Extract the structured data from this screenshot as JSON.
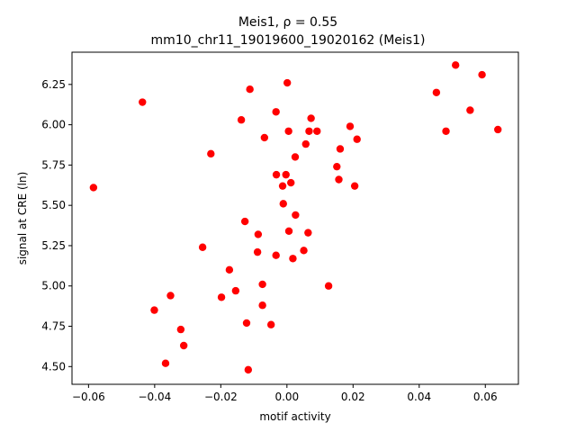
{
  "chart_data": {
    "type": "scatter",
    "title_line1": "Meis1, ρ = 0.55",
    "title_line2": "mm10_chr11_19019600_19020162 (Meis1)",
    "xlabel": "motif activity",
    "ylabel": "signal at CRE (ln)",
    "xlim": [
      -0.065,
      0.07
    ],
    "ylim": [
      4.39,
      6.45
    ],
    "x_ticks": [
      -0.06,
      -0.04,
      -0.02,
      0.0,
      0.02,
      0.04,
      0.06
    ],
    "x_tick_labels": [
      "−0.06",
      "−0.04",
      "−0.02",
      "0.00",
      "0.02",
      "0.04",
      "0.06"
    ],
    "y_ticks": [
      4.5,
      4.75,
      5.0,
      5.25,
      5.5,
      5.75,
      6.0,
      6.25
    ],
    "y_tick_labels": [
      "4.50",
      "4.75",
      "5.00",
      "5.25",
      "5.50",
      "5.75",
      "6.00",
      "6.25"
    ],
    "grid": false,
    "marker_color": "#ff0000",
    "points": [
      {
        "x": -0.0585,
        "y": 5.61
      },
      {
        "x": -0.0437,
        "y": 6.14
      },
      {
        "x": -0.0401,
        "y": 4.85
      },
      {
        "x": -0.0367,
        "y": 4.52
      },
      {
        "x": -0.0352,
        "y": 4.94
      },
      {
        "x": -0.0321,
        "y": 4.73
      },
      {
        "x": -0.0312,
        "y": 4.63
      },
      {
        "x": -0.0255,
        "y": 5.24
      },
      {
        "x": -0.023,
        "y": 5.82
      },
      {
        "x": -0.0198,
        "y": 4.93
      },
      {
        "x": -0.0174,
        "y": 5.1
      },
      {
        "x": -0.0155,
        "y": 4.97
      },
      {
        "x": -0.0138,
        "y": 6.03
      },
      {
        "x": -0.0127,
        "y": 5.4
      },
      {
        "x": -0.0122,
        "y": 4.77
      },
      {
        "x": -0.0117,
        "y": 4.48
      },
      {
        "x": -0.0112,
        "y": 6.22
      },
      {
        "x": -0.0087,
        "y": 5.32
      },
      {
        "x": -0.0089,
        "y": 5.21
      },
      {
        "x": -0.0074,
        "y": 5.01
      },
      {
        "x": -0.0074,
        "y": 4.88
      },
      {
        "x": -0.0068,
        "y": 5.92
      },
      {
        "x": -0.0048,
        "y": 4.76
      },
      {
        "x": -0.0033,
        "y": 6.08
      },
      {
        "x": -0.0032,
        "y": 5.69
      },
      {
        "x": -0.0033,
        "y": 5.19
      },
      {
        "x": -0.0013,
        "y": 5.62
      },
      {
        "x": -0.0011,
        "y": 5.51
      },
      {
        "x": -0.0003,
        "y": 5.69
      },
      {
        "x": 0.0001,
        "y": 6.26
      },
      {
        "x": 0.0005,
        "y": 5.96
      },
      {
        "x": 0.0006,
        "y": 5.34
      },
      {
        "x": 0.0012,
        "y": 5.64
      },
      {
        "x": 0.0018,
        "y": 5.17
      },
      {
        "x": 0.0025,
        "y": 5.8
      },
      {
        "x": 0.0026,
        "y": 5.44
      },
      {
        "x": 0.0051,
        "y": 5.22
      },
      {
        "x": 0.0057,
        "y": 5.88
      },
      {
        "x": 0.0064,
        "y": 5.33
      },
      {
        "x": 0.0067,
        "y": 5.96
      },
      {
        "x": 0.0073,
        "y": 6.04
      },
      {
        "x": 0.0091,
        "y": 5.96
      },
      {
        "x": 0.0126,
        "y": 5.0
      },
      {
        "x": 0.0151,
        "y": 5.74
      },
      {
        "x": 0.0157,
        "y": 5.66
      },
      {
        "x": 0.0161,
        "y": 5.85
      },
      {
        "x": 0.0191,
        "y": 5.99
      },
      {
        "x": 0.0205,
        "y": 5.62
      },
      {
        "x": 0.0212,
        "y": 5.91
      },
      {
        "x": 0.0452,
        "y": 6.2
      },
      {
        "x": 0.0481,
        "y": 5.96
      },
      {
        "x": 0.051,
        "y": 6.37
      },
      {
        "x": 0.0554,
        "y": 6.09
      },
      {
        "x": 0.059,
        "y": 6.31
      },
      {
        "x": 0.0638,
        "y": 5.97
      }
    ]
  }
}
